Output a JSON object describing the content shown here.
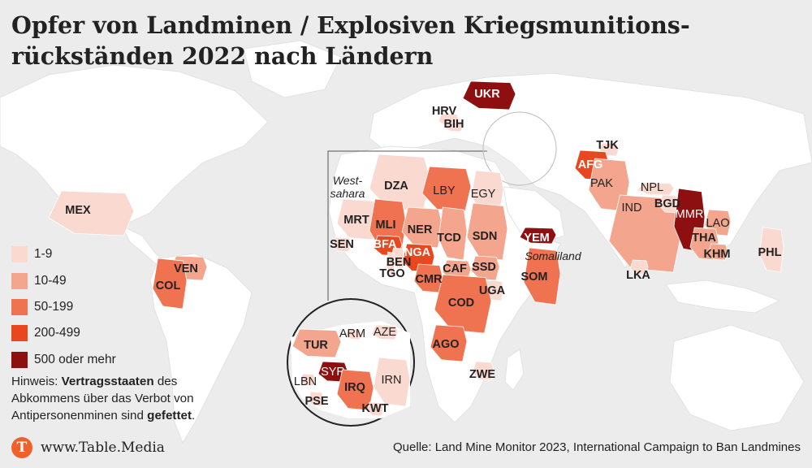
{
  "title_line1": "Opfer von Landminen / Explosiven Kriegsmunitions-",
  "title_line2": "rückständen 2022 nach Ländern",
  "legend": [
    {
      "label": "1-9",
      "color": "#f9d9d0"
    },
    {
      "label": "10-49",
      "color": "#f4a58e"
    },
    {
      "label": "50-199",
      "color": "#ef7350"
    },
    {
      "label": "200-499",
      "color": "#e8471f"
    },
    {
      "label": "500 oder mehr",
      "color": "#8e0f10"
    }
  ],
  "note": {
    "prefix": "Hinweis: ",
    "bold1": "Vertragsstaaten",
    "mid": " des Abkommens über das Verbot von Antipersonenminen sind ",
    "bold2": "gefettet",
    "suffix": "."
  },
  "brand": {
    "logo_letter": "T",
    "url": "www.Table.Media"
  },
  "source": "Quelle: Land Mine Monitor 2023, International Campaign to Ban Landmines",
  "regions": [
    {
      "code": "West-\nsahara",
      "category": 1,
      "party": false,
      "italic": true
    },
    {
      "code": "Somaliland",
      "category": 1,
      "party": false,
      "italic": true
    },
    {
      "code": "MEX",
      "category": 1,
      "party": true
    },
    {
      "code": "VEN",
      "category": 2,
      "party": true
    },
    {
      "code": "COL",
      "category": 3,
      "party": true
    },
    {
      "code": "HRV",
      "category": 1,
      "party": true
    },
    {
      "code": "BIH",
      "category": 1,
      "party": true
    },
    {
      "code": "UKR",
      "category": 5,
      "party": true
    },
    {
      "code": "TJK",
      "category": 1,
      "party": true
    },
    {
      "code": "AFG",
      "category": 4,
      "party": true
    },
    {
      "code": "PAK",
      "category": 2,
      "party": false
    },
    {
      "code": "NPL",
      "category": 1,
      "party": false
    },
    {
      "code": "IND",
      "category": 2,
      "party": false
    },
    {
      "code": "BGD",
      "category": 1,
      "party": true
    },
    {
      "code": "MMR",
      "category": 5,
      "party": false
    },
    {
      "code": "LAO",
      "category": 2,
      "party": false
    },
    {
      "code": "THA",
      "category": 2,
      "party": true
    },
    {
      "code": "KHM",
      "category": 2,
      "party": true
    },
    {
      "code": "PHL",
      "category": 1,
      "party": true
    },
    {
      "code": "LKA",
      "category": 1,
      "party": true
    },
    {
      "code": "DZA",
      "category": 1,
      "party": true
    },
    {
      "code": "LBY",
      "category": 3,
      "party": false
    },
    {
      "code": "EGY",
      "category": 1,
      "party": false
    },
    {
      "code": "MRT",
      "category": 1,
      "party": true
    },
    {
      "code": "MLI",
      "category": 3,
      "party": true
    },
    {
      "code": "NER",
      "category": 2,
      "party": true
    },
    {
      "code": "TCD",
      "category": 2,
      "party": true
    },
    {
      "code": "SDN",
      "category": 2,
      "party": true
    },
    {
      "code": "SEN",
      "category": 1,
      "party": true
    },
    {
      "code": "BFA",
      "category": 4,
      "party": true
    },
    {
      "code": "NGA",
      "category": 4,
      "party": true
    },
    {
      "code": "BEN",
      "category": 1,
      "party": true
    },
    {
      "code": "TGO",
      "category": 1,
      "party": true
    },
    {
      "code": "CMR",
      "category": 3,
      "party": true
    },
    {
      "code": "CAF",
      "category": 2,
      "party": true
    },
    {
      "code": "SSD",
      "category": 2,
      "party": true
    },
    {
      "code": "YEM",
      "category": 5,
      "party": true
    },
    {
      "code": "SOM",
      "category": 3,
      "party": true
    },
    {
      "code": "UGA",
      "category": 1,
      "party": true
    },
    {
      "code": "COD",
      "category": 3,
      "party": true
    },
    {
      "code": "AGO",
      "category": 3,
      "party": true
    },
    {
      "code": "ZWE",
      "category": 1,
      "party": true
    },
    {
      "code": "TUR",
      "category": 2,
      "party": true
    },
    {
      "code": "ARM",
      "category": 1,
      "party": false
    },
    {
      "code": "AZE",
      "category": 1,
      "party": false
    },
    {
      "code": "SYR",
      "category": 5,
      "party": false
    },
    {
      "code": "LBN",
      "category": 1,
      "party": false
    },
    {
      "code": "IRQ",
      "category": 3,
      "party": true
    },
    {
      "code": "IRN",
      "category": 1,
      "party": false
    },
    {
      "code": "PSE",
      "category": 1,
      "party": true
    },
    {
      "code": "KWT",
      "category": 1,
      "party": true
    }
  ]
}
